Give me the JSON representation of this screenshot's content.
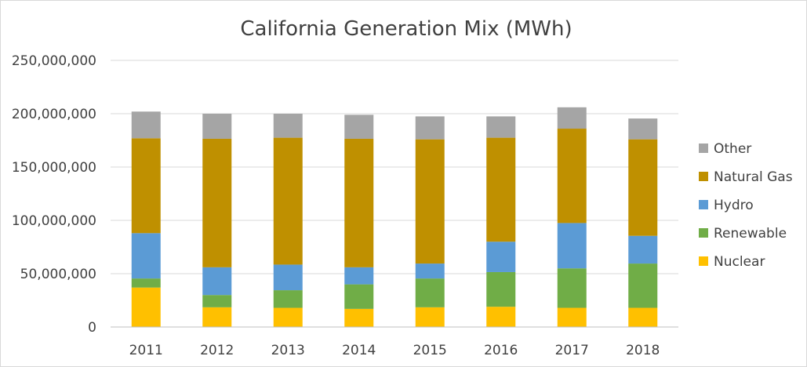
{
  "chart_data": {
    "type": "bar",
    "stacked": true,
    "title": "California Generation Mix (MWh)",
    "xlabel": "",
    "ylabel": "",
    "ylim": [
      0,
      250000000
    ],
    "ytick_values": [
      0,
      50000000,
      100000000,
      150000000,
      200000000,
      250000000
    ],
    "ytick_labels": [
      "0",
      "50,000,000",
      "100,000,000",
      "150,000,000",
      "200,000,000",
      "250,000,000"
    ],
    "grid": true,
    "legend_position": "right",
    "categories": [
      "2011",
      "2012",
      "2013",
      "2014",
      "2015",
      "2016",
      "2017",
      "2018"
    ],
    "series": [
      {
        "name": "Nuclear",
        "color": "#ffc000",
        "values": [
          37000000,
          18500000,
          18000000,
          17000000,
          18500000,
          19000000,
          18000000,
          18000000
        ]
      },
      {
        "name": "Renewable",
        "color": "#70ad47",
        "values": [
          8500000,
          11500000,
          16500000,
          23000000,
          27000000,
          32500000,
          37000000,
          41500000
        ]
      },
      {
        "name": "Hydro",
        "color": "#5b9bd5",
        "values": [
          42500000,
          26000000,
          24000000,
          16000000,
          14000000,
          28500000,
          42500000,
          26000000
        ]
      },
      {
        "name": "Natural Gas",
        "color": "#bf9000",
        "values": [
          89000000,
          120500000,
          119000000,
          120500000,
          116500000,
          97500000,
          88500000,
          90500000
        ]
      },
      {
        "name": "Other",
        "color": "#a5a5a5",
        "values": [
          25000000,
          23500000,
          22500000,
          22500000,
          21500000,
          20000000,
          20000000,
          19500000
        ]
      }
    ],
    "legend_order": [
      "Other",
      "Natural Gas",
      "Hydro",
      "Renewable",
      "Nuclear"
    ]
  }
}
